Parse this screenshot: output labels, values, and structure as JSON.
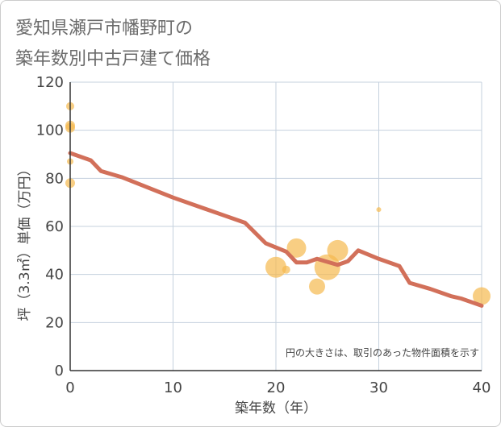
{
  "chart_data": {
    "type": "scatter",
    "title_lines": [
      "愛知県瀬戸市幡野町の",
      "築年数別中古戸建て価格"
    ],
    "xlabel": "築年数（年）",
    "ylabel": "坪（3.3㎡）単価（万円）",
    "note": "円の大きさは、取引のあった物件面積を示す",
    "xlim": [
      0,
      40
    ],
    "ylim": [
      0,
      120
    ],
    "x_ticks": [
      0,
      10,
      20,
      30,
      40
    ],
    "y_ticks": [
      0,
      20,
      40,
      60,
      80,
      100,
      120
    ],
    "grid": true,
    "scatter": [
      {
        "x": 0,
        "y": 110,
        "r": 5
      },
      {
        "x": 0,
        "y": 102,
        "r": 6
      },
      {
        "x": 0,
        "y": 101,
        "r": 6
      },
      {
        "x": 0,
        "y": 87,
        "r": 4
      },
      {
        "x": 0,
        "y": 78,
        "r": 6
      },
      {
        "x": 20,
        "y": 43,
        "r": 13
      },
      {
        "x": 21,
        "y": 42,
        "r": 5
      },
      {
        "x": 22,
        "y": 51,
        "r": 12
      },
      {
        "x": 24,
        "y": 35,
        "r": 10
      },
      {
        "x": 25,
        "y": 43,
        "r": 16
      },
      {
        "x": 26,
        "y": 50,
        "r": 13
      },
      {
        "x": 30,
        "y": 67,
        "r": 3
      },
      {
        "x": 40,
        "y": 31,
        "r": 11
      }
    ],
    "trend_line": {
      "x": [
        0,
        2,
        3,
        5,
        10,
        15,
        17,
        19,
        21,
        22,
        23,
        24,
        26,
        27,
        28,
        30,
        32,
        33,
        35,
        37,
        38,
        40
      ],
      "y": [
        90.5,
        87.5,
        83,
        80.5,
        72,
        64.5,
        61.5,
        53,
        49.5,
        45,
        45,
        46.5,
        44,
        45.5,
        50,
        46.5,
        43.5,
        36.5,
        34,
        31,
        30,
        27
      ]
    },
    "colors": {
      "bubble": "#f5b94f",
      "trend": "#d2705a",
      "grid": "#c5d1de",
      "axis": "#333333"
    }
  }
}
